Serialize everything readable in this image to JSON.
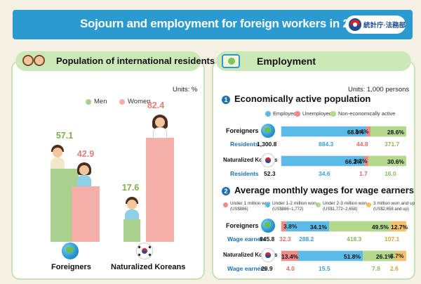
{
  "title": "Sojourn and employment for foreign workers in 2018",
  "org_logo": "統計庁·法務部",
  "left_panel": {
    "header": "Population of international residents",
    "units": "Units: %",
    "legend": [
      {
        "label": "Men",
        "color": "#a9d08e"
      },
      {
        "label": "Women",
        "color": "#f4b0a8"
      }
    ],
    "groups": [
      {
        "name": "Foreigners",
        "men": "57.1",
        "women": "42.9"
      },
      {
        "name": "Naturalized Koreans",
        "men": "17.6",
        "women": "82.4"
      }
    ]
  },
  "right_panel": {
    "header": "Employment",
    "units": "Units: 1,000 persons",
    "section1": {
      "number": "1",
      "title": "Economically active population",
      "legend": [
        {
          "label": "Employed",
          "color": "#5bbbe8"
        },
        {
          "label": "Unemployed",
          "color": "#f28a86"
        },
        {
          "label": "Non-economically active",
          "color": "#b5d98a"
        }
      ],
      "rows": [
        {
          "name": "Foreigners",
          "employed": "68.0%",
          "unemployed": "3.4%",
          "nonactive": "28.6%",
          "residents_label": "Residents",
          "residents": "1,300.8",
          "employed_n": "884.3",
          "unemployed_n": "44.8",
          "nonactive_n": "371.7"
        },
        {
          "name": "Naturalized Koreans",
          "employed": "66.2%",
          "unemployed": "3.3%",
          "nonactive": "30.6%",
          "residents_label": "Residents",
          "residents": "52.3",
          "employed_n": "34.6",
          "unemployed_n": "1.7",
          "nonactive_n": "16.0"
        }
      ]
    },
    "section2": {
      "number": "2",
      "title": "Average monthly wages for wage earners",
      "legend": [
        {
          "label": "Under 1 million won",
          "sub": "(US$886)",
          "color": "#f28a86"
        },
        {
          "label": "Under 1-2 million won",
          "sub": "(US$886~1,772)",
          "color": "#5bbbe8"
        },
        {
          "label": "Under 2-3 million won",
          "sub": "(US$1,772~2,658)",
          "color": "#b5d98a"
        },
        {
          "label": "3 million won and up",
          "sub": "(US$2,658 and up)",
          "color": "#f5c26b"
        }
      ],
      "rows": [
        {
          "name": "Foreigners",
          "s1": "3.8%",
          "s2": "34.1%",
          "s3": "49.5%",
          "s4": "12.7%",
          "earners_label": "Wage earners",
          "earners": "845.8",
          "n1": "32.3",
          "n2": "288.2",
          "n3": "418.3",
          "n4": "107.1"
        },
        {
          "name": "Naturalized Koreans",
          "s1": "13.4%",
          "s2": "51.8%",
          "s3": "26.1%",
          "s4": "8.7%",
          "earners_label": "Wage earners",
          "earners": "29.9",
          "n1": "4.0",
          "n2": "15.5",
          "n3": "7.8",
          "n4": "2.6"
        }
      ]
    }
  }
}
